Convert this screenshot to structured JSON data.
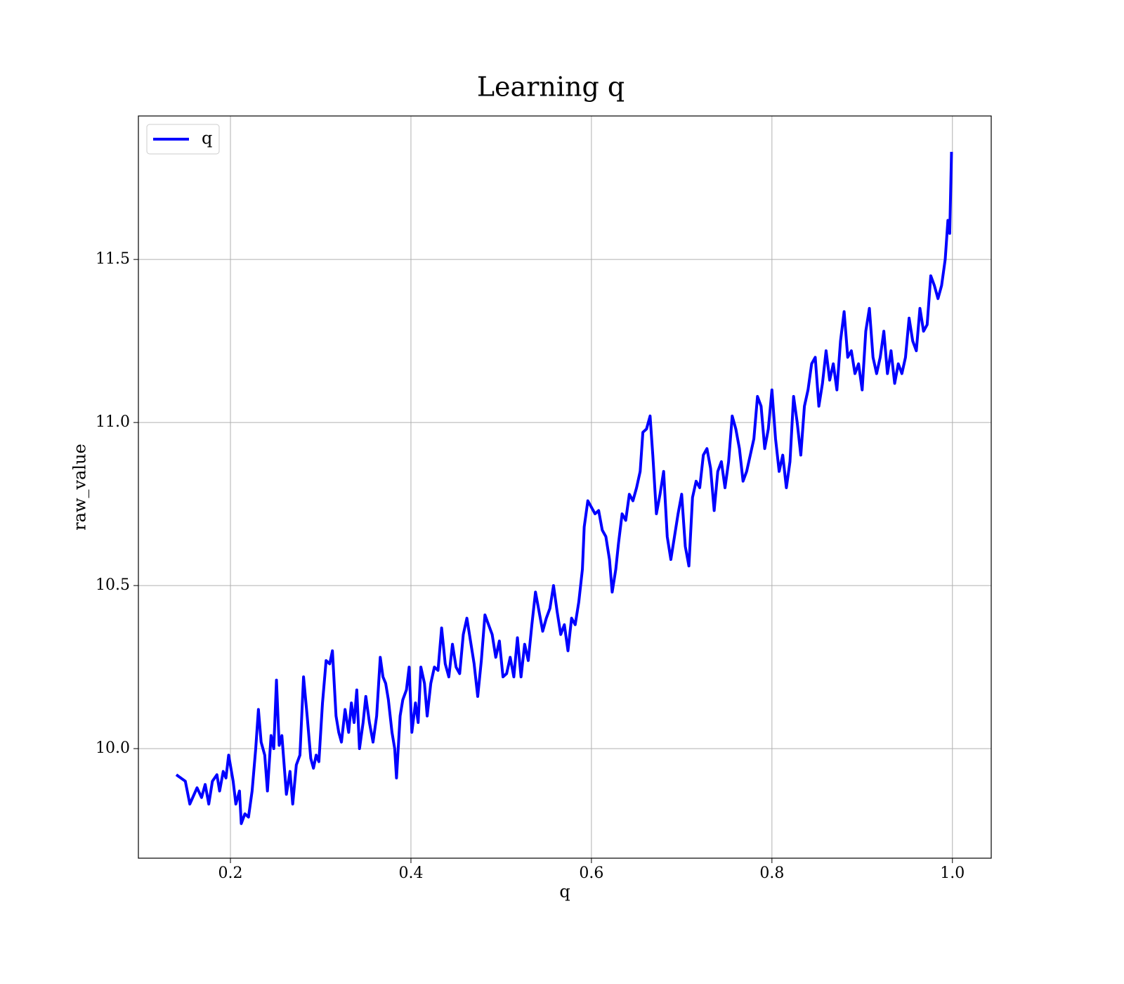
{
  "chart_data": {
    "type": "line",
    "title": "Learning q",
    "xlabel": "q",
    "ylabel": "raw_value",
    "x": [
      0.14,
      0.15,
      0.155,
      0.163,
      0.168,
      0.172,
      0.176,
      0.18,
      0.185,
      0.188,
      0.192,
      0.195,
      0.198,
      0.203,
      0.206,
      0.21,
      0.212,
      0.216,
      0.22,
      0.224,
      0.228,
      0.231,
      0.234,
      0.238,
      0.241,
      0.245,
      0.248,
      0.251,
      0.254,
      0.257,
      0.262,
      0.266,
      0.269,
      0.273,
      0.277,
      0.281,
      0.285,
      0.289,
      0.292,
      0.295,
      0.298,
      0.302,
      0.306,
      0.31,
      0.313,
      0.317,
      0.32,
      0.323,
      0.327,
      0.331,
      0.334,
      0.337,
      0.34,
      0.343,
      0.347,
      0.35,
      0.354,
      0.358,
      0.362,
      0.366,
      0.369,
      0.372,
      0.375,
      0.379,
      0.382,
      0.384,
      0.388,
      0.391,
      0.395,
      0.398,
      0.401,
      0.405,
      0.408,
      0.411,
      0.415,
      0.418,
      0.422,
      0.426,
      0.43,
      0.434,
      0.438,
      0.442,
      0.446,
      0.45,
      0.454,
      0.458,
      0.462,
      0.466,
      0.47,
      0.474,
      0.478,
      0.482,
      0.486,
      0.49,
      0.494,
      0.498,
      0.502,
      0.506,
      0.51,
      0.514,
      0.518,
      0.522,
      0.526,
      0.53,
      0.534,
      0.538,
      0.542,
      0.546,
      0.55,
      0.554,
      0.558,
      0.562,
      0.566,
      0.57,
      0.574,
      0.578,
      0.582,
      0.586,
      0.59,
      0.592,
      0.596,
      0.6,
      0.604,
      0.608,
      0.612,
      0.616,
      0.62,
      0.623,
      0.627,
      0.63,
      0.634,
      0.638,
      0.642,
      0.646,
      0.65,
      0.654,
      0.657,
      0.661,
      0.665,
      0.668,
      0.672,
      0.676,
      0.68,
      0.684,
      0.688,
      0.692,
      0.696,
      0.7,
      0.704,
      0.708,
      0.712,
      0.716,
      0.72,
      0.724,
      0.728,
      0.732,
      0.736,
      0.74,
      0.744,
      0.748,
      0.752,
      0.756,
      0.76,
      0.764,
      0.768,
      0.772,
      0.776,
      0.78,
      0.784,
      0.788,
      0.792,
      0.796,
      0.8,
      0.804,
      0.808,
      0.812,
      0.816,
      0.82,
      0.824,
      0.828,
      0.832,
      0.836,
      0.84,
      0.844,
      0.848,
      0.852,
      0.856,
      0.86,
      0.864,
      0.868,
      0.872,
      0.876,
      0.88,
      0.884,
      0.888,
      0.892,
      0.896,
      0.9,
      0.904,
      0.908,
      0.912,
      0.916,
      0.92,
      0.924,
      0.928,
      0.932,
      0.936,
      0.94,
      0.944,
      0.948,
      0.952,
      0.956,
      0.96,
      0.964,
      0.968,
      0.972,
      0.976,
      0.98,
      0.984,
      0.988,
      0.992,
      0.995,
      0.997,
      0.999
    ],
    "series": [
      {
        "name": "q",
        "color": "#0000ff",
        "values": [
          9.92,
          9.9,
          9.83,
          9.88,
          9.85,
          9.89,
          9.83,
          9.9,
          9.92,
          9.87,
          9.93,
          9.91,
          9.98,
          9.9,
          9.83,
          9.87,
          9.77,
          9.8,
          9.79,
          9.87,
          10.0,
          10.12,
          10.02,
          9.98,
          9.87,
          10.04,
          10.0,
          10.21,
          10.01,
          10.04,
          9.86,
          9.93,
          9.83,
          9.95,
          9.98,
          10.22,
          10.1,
          9.97,
          9.94,
          9.98,
          9.96,
          10.14,
          10.27,
          10.26,
          10.3,
          10.1,
          10.05,
          10.02,
          10.12,
          10.05,
          10.14,
          10.08,
          10.18,
          10.0,
          10.08,
          10.16,
          10.08,
          10.02,
          10.1,
          10.28,
          10.22,
          10.2,
          10.15,
          10.05,
          10.0,
          9.91,
          10.1,
          10.15,
          10.18,
          10.25,
          10.05,
          10.14,
          10.08,
          10.25,
          10.2,
          10.1,
          10.2,
          10.25,
          10.24,
          10.37,
          10.26,
          10.22,
          10.32,
          10.25,
          10.23,
          10.35,
          10.4,
          10.33,
          10.26,
          10.16,
          10.27,
          10.41,
          10.38,
          10.35,
          10.28,
          10.33,
          10.22,
          10.23,
          10.28,
          10.22,
          10.34,
          10.22,
          10.32,
          10.27,
          10.38,
          10.48,
          10.42,
          10.36,
          10.4,
          10.43,
          10.5,
          10.42,
          10.35,
          10.38,
          10.3,
          10.4,
          10.38,
          10.45,
          10.55,
          10.68,
          10.76,
          10.74,
          10.72,
          10.73,
          10.67,
          10.65,
          10.58,
          10.48,
          10.55,
          10.63,
          10.72,
          10.7,
          10.78,
          10.76,
          10.8,
          10.85,
          10.97,
          10.98,
          11.02,
          10.9,
          10.72,
          10.78,
          10.85,
          10.65,
          10.58,
          10.65,
          10.72,
          10.78,
          10.62,
          10.56,
          10.77,
          10.82,
          10.8,
          10.9,
          10.92,
          10.86,
          10.73,
          10.85,
          10.88,
          10.8,
          10.88,
          11.02,
          10.98,
          10.92,
          10.82,
          10.85,
          10.9,
          10.95,
          11.08,
          11.05,
          10.92,
          10.98,
          11.1,
          10.95,
          10.85,
          10.9,
          10.8,
          10.88,
          11.08,
          11.0,
          10.9,
          11.05,
          11.1,
          11.18,
          11.2,
          11.05,
          11.12,
          11.22,
          11.13,
          11.18,
          11.1,
          11.25,
          11.34,
          11.2,
          11.22,
          11.15,
          11.18,
          11.1,
          11.28,
          11.35,
          11.2,
          11.15,
          11.2,
          11.28,
          11.15,
          11.22,
          11.12,
          11.18,
          11.15,
          11.2,
          11.32,
          11.25,
          11.22,
          11.35,
          11.28,
          11.3,
          11.45,
          11.42,
          11.38,
          11.42,
          11.5,
          11.62,
          11.58,
          11.83
        ]
      }
    ],
    "xlim": [
      0.098,
      1.043
    ],
    "ylim": [
      9.664,
      11.94
    ],
    "xticks": [
      0.2,
      0.4,
      0.6,
      0.8,
      {
        "value": 1,
        "label": "1.0"
      }
    ],
    "yticks": [
      {
        "value": 10,
        "label": "10.0"
      },
      10.5,
      {
        "value": 11,
        "label": "11.0"
      },
      11.5
    ],
    "grid": true,
    "legend": "upper-left"
  }
}
